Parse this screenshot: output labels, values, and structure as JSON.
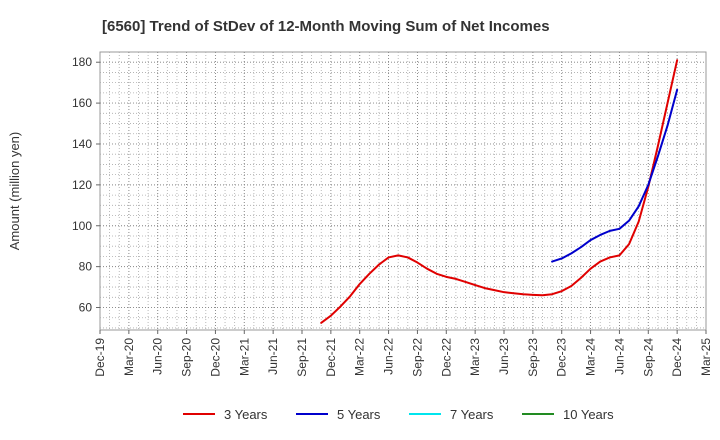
{
  "chart_data": {
    "type": "line",
    "title": "[6560]  Trend of StDev of 12-Month Moving Sum of Net Incomes",
    "xlabel": "",
    "ylabel": "Amount (million yen)",
    "x_ticks": [
      "Dec-19",
      "Mar-20",
      "Jun-20",
      "Sep-20",
      "Dec-20",
      "Mar-21",
      "Jun-21",
      "Sep-21",
      "Dec-21",
      "Mar-22",
      "Jun-22",
      "Sep-22",
      "Dec-22",
      "Mar-23",
      "Jun-23",
      "Sep-23",
      "Dec-23",
      "Mar-24",
      "Jun-24",
      "Sep-24",
      "Dec-24",
      "Mar-25"
    ],
    "y_ticks": [
      60,
      80,
      100,
      120,
      140,
      160,
      180
    ],
    "ylim": [
      49,
      185
    ],
    "grid": true,
    "legend_position": "bottom",
    "series": [
      {
        "name": "3 Years",
        "color": "#e00000",
        "points": [
          [
            "Nov-21",
            52.5
          ],
          [
            "Dec-21",
            56
          ],
          [
            "Jan-22",
            60.5
          ],
          [
            "Feb-22",
            65.5
          ],
          [
            "Mar-22",
            71.5
          ],
          [
            "Apr-22",
            76.5
          ],
          [
            "May-22",
            81
          ],
          [
            "Jun-22",
            84.5
          ],
          [
            "Jul-22",
            85.5
          ],
          [
            "Aug-22",
            84.5
          ],
          [
            "Sep-22",
            82
          ],
          [
            "Oct-22",
            79
          ],
          [
            "Nov-22",
            76.5
          ],
          [
            "Dec-22",
            75
          ],
          [
            "Jan-23",
            74
          ],
          [
            "Feb-23",
            72.5
          ],
          [
            "Mar-23",
            71
          ],
          [
            "Apr-23",
            69.5
          ],
          [
            "May-23",
            68.5
          ],
          [
            "Jun-23",
            67.5
          ],
          [
            "Jul-23",
            67
          ],
          [
            "Aug-23",
            66.5
          ],
          [
            "Sep-23",
            66.2
          ],
          [
            "Oct-23",
            66
          ],
          [
            "Nov-23",
            66.5
          ],
          [
            "Dec-23",
            68
          ],
          [
            "Jan-24",
            70.5
          ],
          [
            "Feb-24",
            74.5
          ],
          [
            "Mar-24",
            79
          ],
          [
            "Apr-24",
            82.5
          ],
          [
            "May-24",
            84.5
          ],
          [
            "Jun-24",
            85.5
          ],
          [
            "Jul-24",
            91
          ],
          [
            "Aug-24",
            102
          ],
          [
            "Sep-24",
            119
          ],
          [
            "Oct-24",
            139
          ],
          [
            "Nov-24",
            160
          ],
          [
            "Dec-24",
            181
          ]
        ]
      },
      {
        "name": "5 Years",
        "color": "#0000cc",
        "points": [
          [
            "Nov-23",
            82.5
          ],
          [
            "Dec-23",
            84
          ],
          [
            "Jan-24",
            86.5
          ],
          [
            "Feb-24",
            89.5
          ],
          [
            "Mar-24",
            93
          ],
          [
            "Apr-24",
            95.5
          ],
          [
            "May-24",
            97.5
          ],
          [
            "Jun-24",
            98.5
          ],
          [
            "Jul-24",
            102.5
          ],
          [
            "Aug-24",
            109.5
          ],
          [
            "Sep-24",
            120
          ],
          [
            "Oct-24",
            134
          ],
          [
            "Nov-24",
            149
          ],
          [
            "Dec-24",
            166.5
          ]
        ]
      },
      {
        "name": "7 Years",
        "color": "#00e5ee",
        "points": []
      },
      {
        "name": "10 Years",
        "color": "#228b22",
        "points": []
      }
    ]
  }
}
